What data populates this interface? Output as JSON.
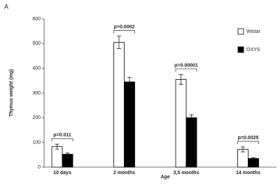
{
  "chart_data": {
    "type": "bar",
    "panel_label": "A",
    "x_label": "Age",
    "y_label": "Thymus weight (mg)",
    "categories": [
      "10 days",
      "2 months",
      "3,5 months",
      "14 months"
    ],
    "series": [
      {
        "name": "Wistar",
        "color": "#ffffff",
        "values": [
          83,
          505,
          355,
          72
        ],
        "errors": [
          10,
          25,
          20,
          10
        ]
      },
      {
        "name": "OXYS",
        "color": "#000000",
        "values": [
          52,
          345,
          200,
          35
        ],
        "errors": [
          5,
          18,
          12,
          3
        ]
      }
    ],
    "annotations": [
      "p=0.011",
      "p=0.0002",
      "p=0.00001",
      "p=0.0025"
    ],
    "ylim": [
      0,
      600
    ],
    "yticks": [
      0,
      100,
      200,
      300,
      400,
      500,
      600
    ],
    "grid": false,
    "legend": "upper right"
  }
}
